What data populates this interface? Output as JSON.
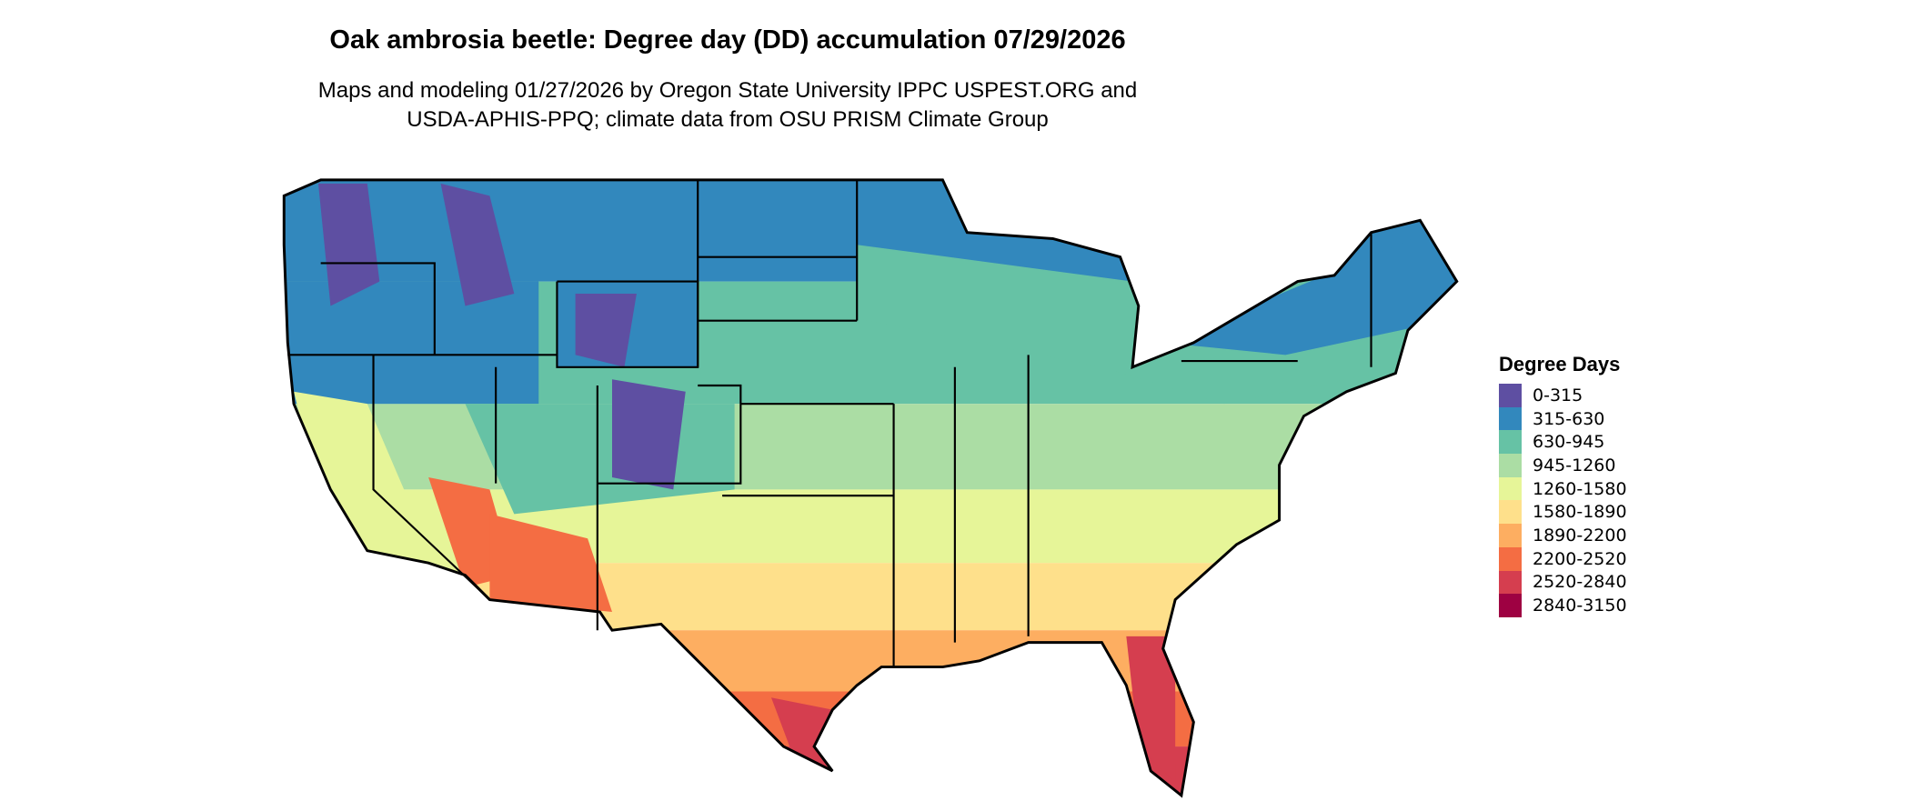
{
  "title": "Oak ambrosia beetle: Degree day (DD) accumulation 07/29/2026",
  "subtitle_line1": "Maps and modeling 01/27/2026 by Oregon State University IPPC USPEST.ORG and",
  "subtitle_line2": "USDA-APHIS-PPQ; climate data from OSU PRISM Climate Group",
  "legend": {
    "title": "Degree Days",
    "items": [
      {
        "label": "0-315",
        "color": "#5e4fa2"
      },
      {
        "label": "315-630",
        "color": "#3288bd"
      },
      {
        "label": "630-945",
        "color": "#66c2a5"
      },
      {
        "label": "945-1260",
        "color": "#abdda4"
      },
      {
        "label": "1260-1580",
        "color": "#e6f598"
      },
      {
        "label": "1580-1890",
        "color": "#fee08b"
      },
      {
        "label": "1890-2200",
        "color": "#fdae61"
      },
      {
        "label": "2200-2520",
        "color": "#f46d43"
      },
      {
        "label": "2520-2840",
        "color": "#d53e4f"
      },
      {
        "label": "2840-3150",
        "color": "#9e0142"
      }
    ]
  },
  "map": {
    "region": "Contiguous United States",
    "borders": "state"
  }
}
